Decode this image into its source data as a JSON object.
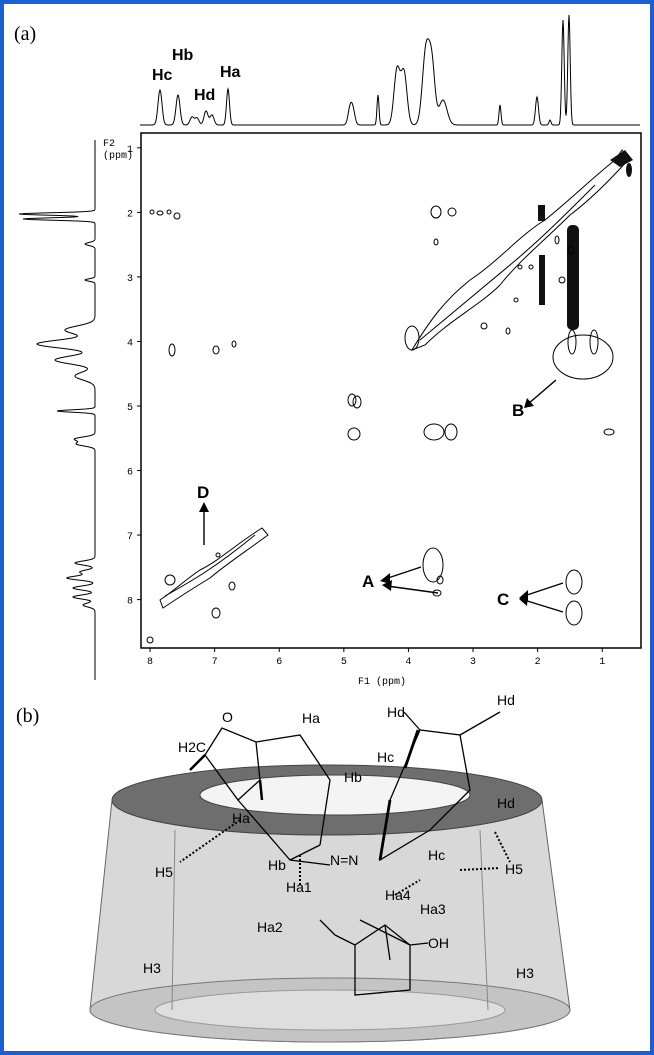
{
  "panel_a": {
    "label": "(a)",
    "peak_labels": [
      "Hc",
      "Hb",
      "Hd",
      "Ha"
    ],
    "f1_label": "F1 (ppm)",
    "f2_label": [
      "F2",
      "(ppm)"
    ],
    "f1_ticks": [
      8,
      7,
      6,
      5,
      4,
      3,
      2,
      1
    ],
    "f2_ticks": [
      1,
      2,
      3,
      4,
      5,
      6,
      7,
      8
    ],
    "f1_range": [
      8.14,
      0.4
    ],
    "f2_range": [
      0.77,
      8.75
    ],
    "cross_peak_labels": [
      "A",
      "B",
      "C",
      "D"
    ]
  },
  "panel_b": {
    "label": "(b)",
    "atom_labels": [
      "O",
      "Ha",
      "Hd",
      "Hd",
      "H2C",
      "Hc",
      "Hb",
      "Hd",
      "Ha",
      "H5",
      "Hb",
      "N=N",
      "Hc",
      "H5",
      "Ha1",
      "Ha4",
      "Ha3",
      "Ha2",
      "OH",
      "H3",
      "H3"
    ]
  }
}
